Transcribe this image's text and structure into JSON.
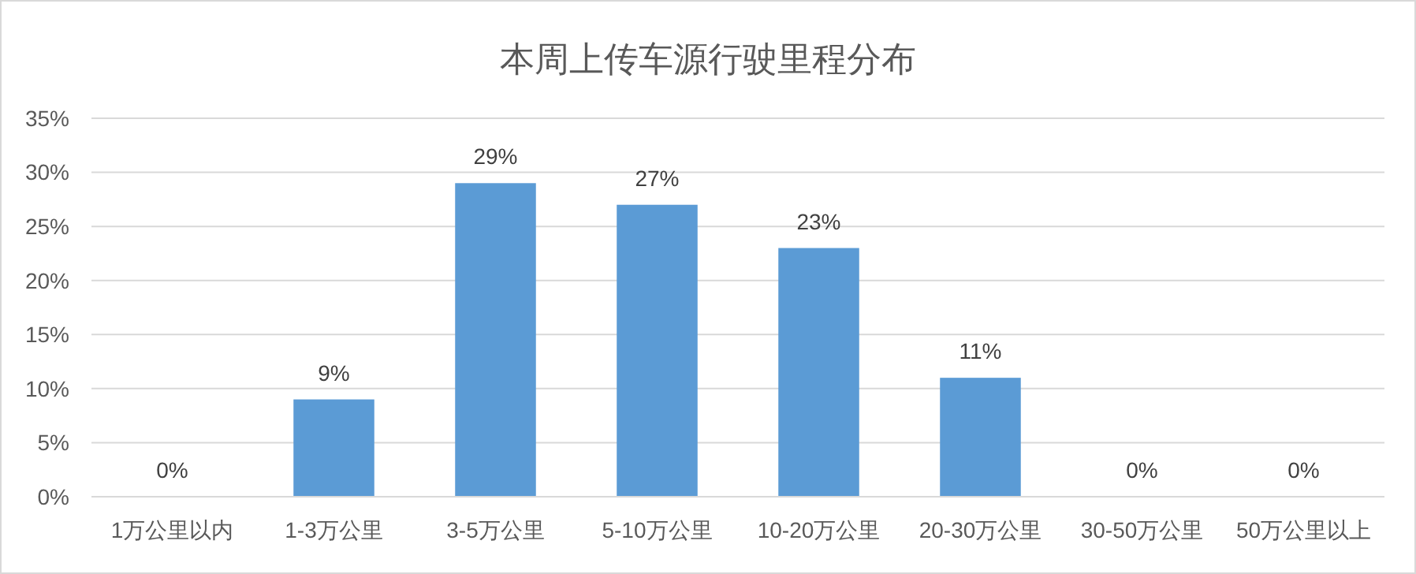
{
  "chart_data": {
    "type": "bar",
    "title": "本周上传车源行驶里程分布",
    "categories": [
      "1万公里以内",
      "1-3万公里",
      "3-5万公里",
      "5-10万公里",
      "10-20万公里",
      "20-30万公里",
      "30-50万公里",
      "50万公里以上"
    ],
    "values": [
      0,
      9,
      29,
      27,
      23,
      11,
      0,
      0
    ],
    "color": "#5b9bd5",
    "value_labels": [
      "0%",
      "9%",
      "29%",
      "27%",
      "23%",
      "11%",
      "0%",
      "0%"
    ],
    "ylim": [
      0,
      35
    ],
    "yticks": [
      {
        "value": 0,
        "label": "0%"
      },
      {
        "value": 5,
        "label": "5%"
      },
      {
        "value": 10,
        "label": "10%"
      },
      {
        "value": 15,
        "label": "15%"
      },
      {
        "value": 20,
        "label": "20%"
      },
      {
        "value": 25,
        "label": "25%"
      },
      {
        "value": 30,
        "label": "30%"
      },
      {
        "value": 35,
        "label": "35%"
      }
    ],
    "grid": "y"
  }
}
